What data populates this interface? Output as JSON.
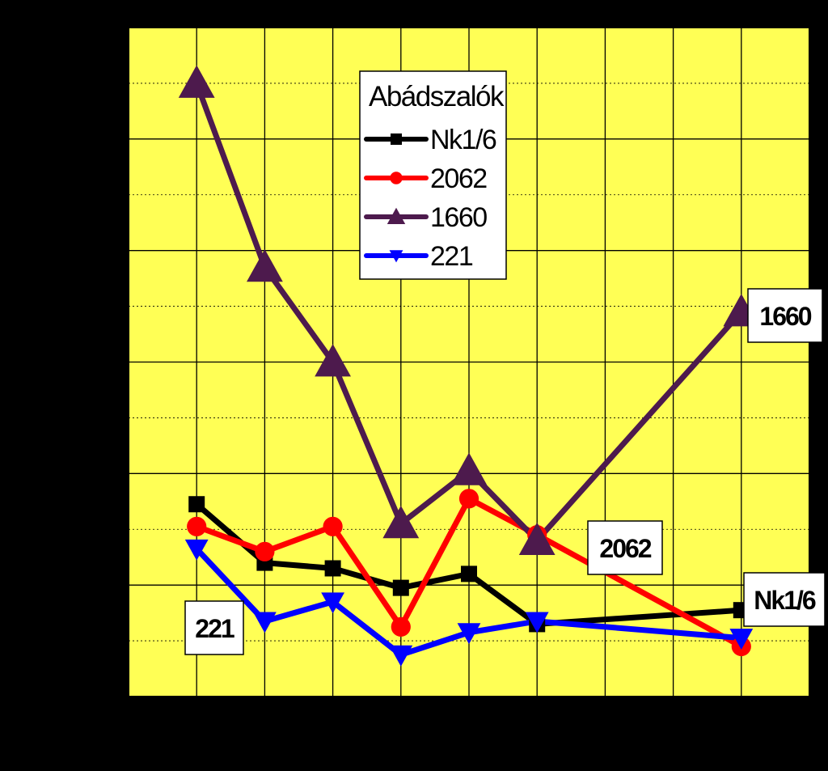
{
  "chart_data": {
    "type": "line",
    "title": "",
    "xlabel": "",
    "ylabel": "",
    "x_points": [
      1,
      2,
      3,
      4,
      5,
      6,
      9
    ],
    "xlim": [
      0,
      10
    ],
    "ylim": [
      0,
      12
    ],
    "grid": true,
    "legend": {
      "title": "Abádszalók",
      "position": "top-center"
    },
    "series": [
      {
        "name": "Nk1/6",
        "color": "#000000",
        "marker": "square",
        "values": [
          3.45,
          2.4,
          2.3,
          1.95,
          2.2,
          1.3,
          1.55
        ]
      },
      {
        "name": "2062",
        "color": "#ff0000",
        "marker": "circle",
        "values": [
          3.05,
          2.6,
          3.05,
          1.25,
          3.55,
          2.9,
          0.9
        ]
      },
      {
        "name": "1660",
        "color": "#4d1a4d",
        "marker": "triangle-up",
        "values": [
          11.0,
          7.7,
          6.0,
          3.1,
          4.05,
          2.8,
          6.9
        ]
      },
      {
        "name": "221",
        "color": "#0000ff",
        "marker": "triangle-down",
        "values": [
          2.65,
          1.35,
          1.7,
          0.75,
          1.15,
          1.35,
          1.05
        ]
      }
    ],
    "callouts": [
      {
        "text": "1660",
        "series": "1660"
      },
      {
        "text": "2062",
        "series": "2062"
      },
      {
        "text": "Nk1/6",
        "series": "Nk1/6"
      },
      {
        "text": "221",
        "series": "221"
      }
    ]
  }
}
